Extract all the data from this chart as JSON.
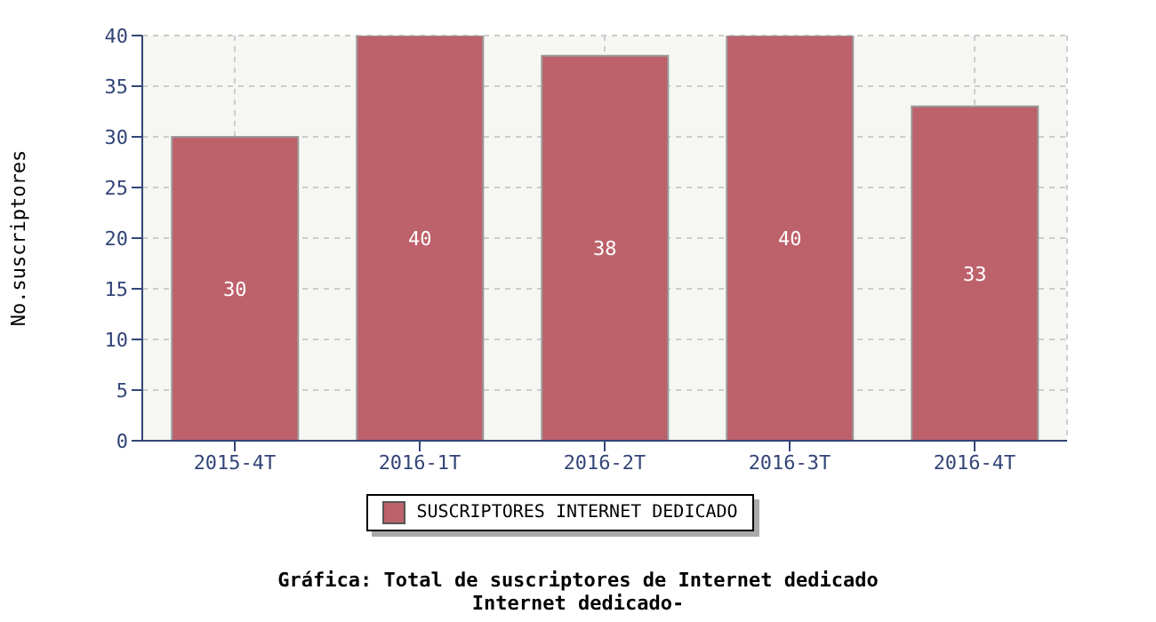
{
  "chart_data": {
    "type": "bar",
    "title": "Gráfica: Total de suscriptores de Internet dedicado",
    "subtitle": "Internet dedicado-",
    "ylabel": "No.suscriptores",
    "categories": [
      "2015-4T",
      "2016-1T",
      "2016-2T",
      "2016-3T",
      "2016-4T"
    ],
    "series": [
      {
        "name": "SUSCRIPTORES INTERNET DEDICADO",
        "color": "#bd616b",
        "values": [
          30,
          40,
          38,
          40,
          33
        ]
      }
    ],
    "ylim": [
      0,
      40
    ],
    "yticks": [
      0,
      5,
      10,
      15,
      20,
      25,
      30,
      35,
      40
    ],
    "grid": true,
    "legend": "bottom",
    "data_labels": true
  }
}
